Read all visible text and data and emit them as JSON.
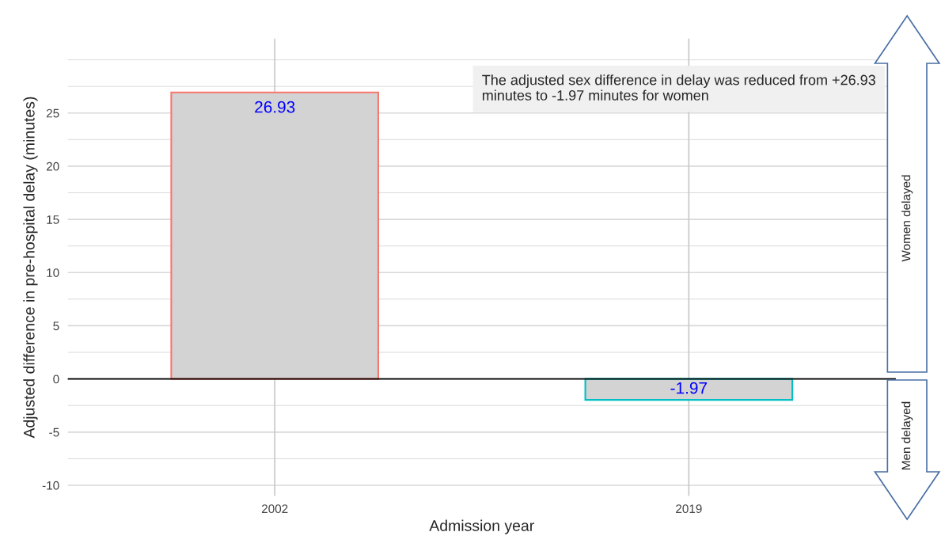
{
  "chart_data": {
    "type": "bar",
    "xlabel": "Admission year",
    "ylabel": "Adjusted difference in pre-hospital delay (minutes)",
    "categories": [
      "2002",
      "2019"
    ],
    "values": [
      26.93,
      -1.97
    ],
    "colors": [
      "#f8766d",
      "#00bfc4"
    ],
    "ylim": [
      -11,
      32
    ],
    "yticks": [
      -10,
      -5,
      0,
      5,
      10,
      15,
      20,
      25
    ],
    "grid": true,
    "data_labels": true,
    "ref_lines": [
      {
        "axis": "y",
        "value": 0,
        "color": "#000000"
      }
    ],
    "annotations": [
      "The adjusted sex difference in delay was reduced from +26.93 minutes to -1.97 minutes for women",
      "Women delayed",
      "Men delayed"
    ]
  }
}
